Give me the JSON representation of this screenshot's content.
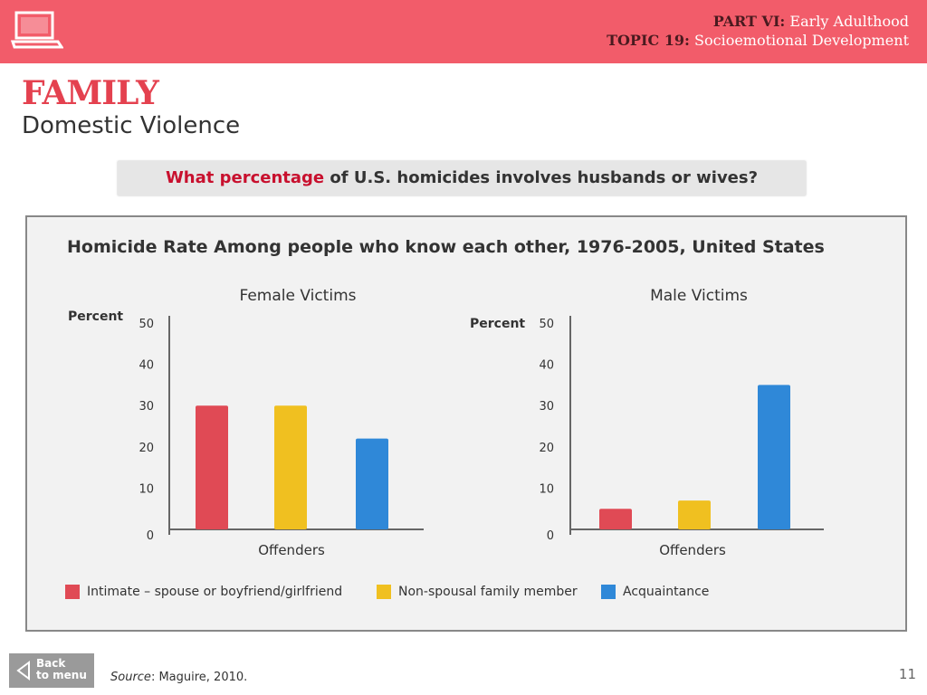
{
  "header": {
    "part_key": "PART VI:",
    "part_value": "Early Adulthood",
    "topic_key": "TOPIC 19:",
    "topic_value": "Socioemotional Development"
  },
  "title": "FAMILY",
  "subtitle": "Domestic Violence",
  "question": {
    "highlight": "What percentage",
    "rest": " of U.S. homicides involves husbands or wives?"
  },
  "footer": {
    "back_line1": "Back",
    "back_line2": "to menu",
    "source_label": "Source",
    "source_text": ": Maguire, 2010.",
    "page_number": "11"
  },
  "colors": {
    "intimate": "#e04a55",
    "family": "#f0c020",
    "acquaintance": "#2f88d8",
    "header": "#f25c6a"
  },
  "chart_data": {
    "type": "bar",
    "title": "Homicide Rate Among people who know each other, 1976-2005, United States",
    "legend": [
      "Intimate – spouse or boyfriend/girlfriend",
      "Non-spousal family member",
      "Acquaintance"
    ],
    "charts": [
      {
        "subtitle": "Female Victims",
        "ylabel": "Percent",
        "xlabel": "Offenders",
        "ylim": [
          0,
          50
        ],
        "yticks": [
          "0",
          "10",
          "20",
          "30",
          "40",
          "50"
        ],
        "values": [
          30,
          30,
          22
        ]
      },
      {
        "subtitle": "Male Victims",
        "ylabel": "Percent",
        "xlabel": "Offenders",
        "ylim": [
          0,
          50
        ],
        "yticks": [
          "0",
          "10",
          "20",
          "30",
          "40",
          "50"
        ],
        "values": [
          5,
          7,
          35
        ]
      }
    ]
  }
}
